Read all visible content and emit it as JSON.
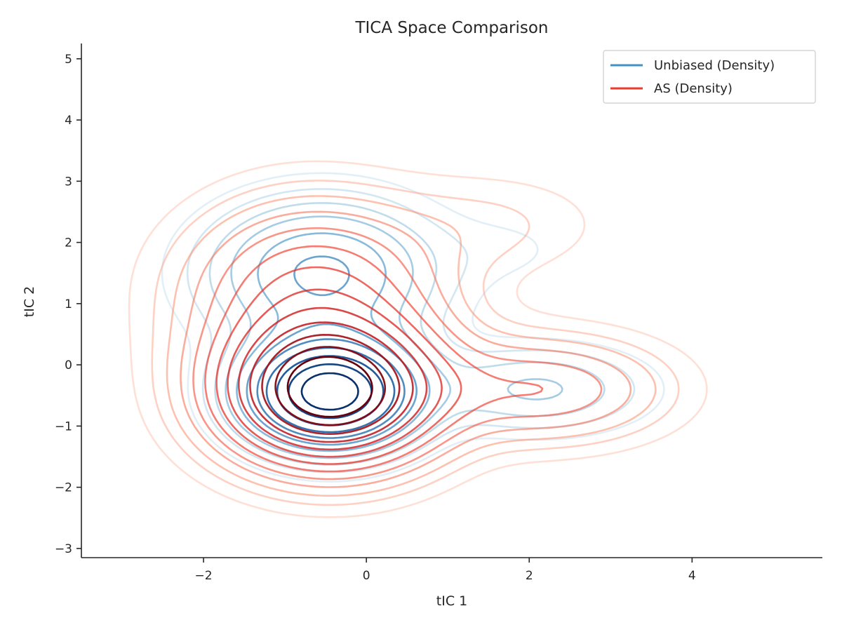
{
  "chart_data": {
    "type": "contour",
    "title": "TICA Space Comparison",
    "xlabel": "tIC 1",
    "ylabel": "tIC 2",
    "xlim": [
      -3.5,
      5.6
    ],
    "ylim": [
      -3.15,
      5.25
    ],
    "xticks": [
      -2,
      0,
      2,
      4
    ],
    "yticks": [
      -3,
      -2,
      -1,
      0,
      1,
      2,
      3,
      4,
      5
    ],
    "xtick_labels": [
      "−2",
      "0",
      "2",
      "4"
    ],
    "ytick_labels": [
      "−3",
      "−2",
      "−1",
      "0",
      "1",
      "2",
      "3",
      "4",
      "5"
    ],
    "legend_position": "top-right",
    "grid": false,
    "series": [
      {
        "name": "Unbiased (Density)",
        "color": "#4292c6",
        "colormap": "Blues",
        "components": [
          {
            "x": -0.45,
            "y": -0.45,
            "sx": 0.65,
            "sy": 0.55,
            "w": 1.0
          },
          {
            "x": -0.55,
            "y": 1.5,
            "sx": 0.9,
            "sy": 0.75,
            "w": 0.32
          },
          {
            "x": 2.1,
            "y": -0.4,
            "sx": 0.85,
            "sy": 0.45,
            "w": 0.16
          },
          {
            "x": 1.8,
            "y": 1.9,
            "sx": 0.6,
            "sy": 0.4,
            "w": 0.03
          }
        ],
        "levels": [
          0.03,
          0.06,
          0.1,
          0.15,
          0.22,
          0.3,
          0.4,
          0.5,
          0.62,
          0.75,
          0.88
        ]
      },
      {
        "name": "AS (Density)",
        "color": "#ef3b2c",
        "colormap": "Reds",
        "components": [
          {
            "x": -0.45,
            "y": -0.45,
            "sx": 0.85,
            "sy": 0.75,
            "w": 1.0
          },
          {
            "x": -0.65,
            "y": 1.2,
            "sx": 1.0,
            "sy": 0.95,
            "w": 0.3
          },
          {
            "x": 2.2,
            "y": -0.4,
            "sx": 0.95,
            "sy": 0.55,
            "w": 0.22
          },
          {
            "x": 1.6,
            "y": 2.3,
            "sx": 0.9,
            "sy": 0.55,
            "w": 0.05
          }
        ],
        "levels": [
          0.025,
          0.05,
          0.08,
          0.12,
          0.17,
          0.23,
          0.3,
          0.38,
          0.47,
          0.57,
          0.68,
          0.8,
          0.9
        ]
      }
    ]
  }
}
